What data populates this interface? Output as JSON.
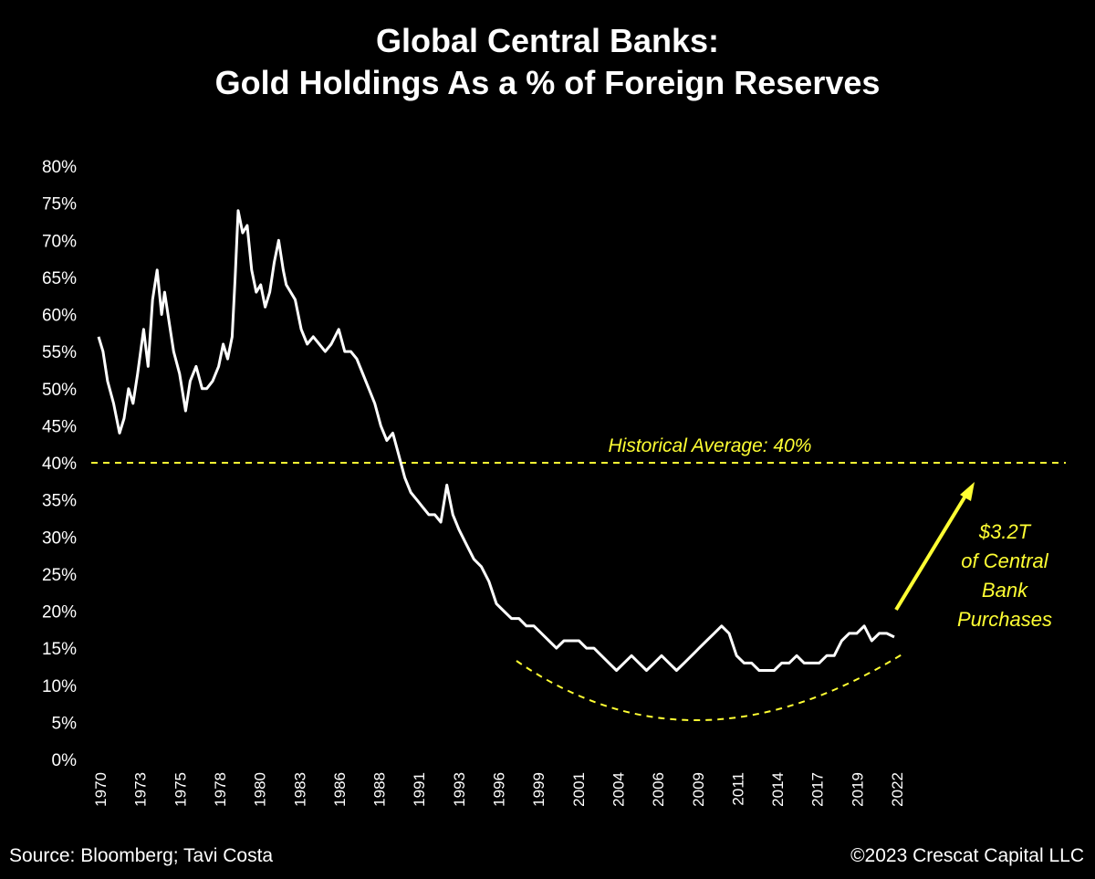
{
  "title": {
    "line1": "Global Central Banks:",
    "line2": "Gold Holdings As a % of Foreign Reserves"
  },
  "footer": {
    "source": "Source: Bloomberg; Tavi Costa",
    "copyright": "©2023 Crescat Capital LLC"
  },
  "colors": {
    "background": "#000000",
    "series": "#ffffff",
    "annotation": "#ffff33"
  },
  "chart_data": {
    "type": "line",
    "title": "Global Central Banks: Gold Holdings As a % of Foreign Reserves",
    "xlabel": "",
    "ylabel": "",
    "ylim": [
      0,
      80
    ],
    "xlim": [
      1970,
      2023
    ],
    "yticks": [
      "0%",
      "5%",
      "10%",
      "15%",
      "20%",
      "25%",
      "30%",
      "35%",
      "40%",
      "45%",
      "50%",
      "55%",
      "60%",
      "65%",
      "70%",
      "75%",
      "80%"
    ],
    "xticks": [
      "1970",
      "1973",
      "1975",
      "1978",
      "1980",
      "1983",
      "1986",
      "1988",
      "1991",
      "1993",
      "1996",
      "1999",
      "2001",
      "2004",
      "2006",
      "2009",
      "2011",
      "2014",
      "2017",
      "2019",
      "2022"
    ],
    "grid": false,
    "legend": "none",
    "series": [
      {
        "x": [
          1970,
          1970.3,
          1970.6,
          1971,
          1971.4,
          1971.7,
          1972,
          1972.3,
          1972.6,
          1973,
          1973.3,
          1973.6,
          1973.9,
          1974.2,
          1974.4,
          1974.7,
          1975,
          1975.4,
          1975.8,
          1976.1,
          1976.5,
          1976.9,
          1977.2,
          1977.6,
          1978,
          1978.3,
          1978.6,
          1978.9,
          1979.1,
          1979.3,
          1979.6,
          1979.9,
          1980.2,
          1980.5,
          1980.8,
          1981.1,
          1981.4,
          1981.7,
          1982,
          1982.3,
          1982.5,
          1982.8,
          1983.1,
          1983.5,
          1983.9,
          1984.3,
          1984.7,
          1985.1,
          1985.5,
          1986,
          1986.4,
          1986.8,
          1987.2,
          1987.6,
          1988,
          1988.4,
          1988.8,
          1989.2,
          1989.6,
          1990,
          1990.4,
          1990.8,
          1991.2,
          1991.6,
          1992,
          1992.4,
          1992.8,
          1993.2,
          1993.6,
          1994,
          1994.5,
          1995,
          1995.5,
          1996,
          1996.5,
          1997,
          1997.5,
          1998,
          1998.5,
          1999,
          1999.5,
          2000,
          2000.5,
          2001,
          2001.5,
          2002,
          2002.5,
          2003,
          2003.5,
          2004,
          2004.5,
          2005,
          2005.5,
          2006,
          2006.5,
          2007,
          2007.5,
          2008,
          2008.5,
          2009,
          2009.5,
          2010,
          2010.5,
          2011,
          2011.5,
          2012,
          2012.5,
          2013,
          2013.5,
          2014,
          2014.5,
          2015,
          2015.5,
          2016,
          2016.5,
          2017,
          2017.5,
          2018,
          2018.5,
          2019,
          2019.5,
          2020,
          2020.5,
          2021,
          2021.5,
          2022,
          2022.5,
          2023
        ],
        "y": [
          57,
          55,
          51,
          48,
          44,
          46,
          50,
          48,
          52,
          58,
          53,
          62,
          66,
          60,
          63,
          59,
          55,
          52,
          47,
          51,
          53,
          50,
          50,
          51,
          53,
          56,
          54,
          57,
          65,
          74,
          71,
          72,
          66,
          63,
          64,
          61,
          63,
          67,
          70,
          66,
          64,
          63,
          62,
          58,
          56,
          57,
          56,
          55,
          56,
          58,
          55,
          55,
          54,
          52,
          50,
          48,
          45,
          43,
          44,
          41,
          38,
          36,
          35,
          34,
          33,
          33,
          32,
          37,
          33,
          31,
          29,
          27,
          26,
          24,
          21,
          20,
          19,
          19,
          18,
          18,
          17,
          16,
          15,
          16,
          16,
          16,
          15,
          15,
          14,
          13,
          12,
          13,
          14,
          13,
          12,
          13,
          14,
          13,
          12,
          13,
          14,
          15,
          16,
          17,
          18,
          17,
          14,
          13,
          13,
          12,
          12,
          12,
          13,
          13,
          14,
          13,
          13,
          13,
          14,
          14,
          16,
          17,
          17,
          18,
          16,
          17,
          17,
          16.5
        ]
      }
    ],
    "annotations": {
      "average_label": "Historical Average: 40%",
      "average_value": 40,
      "purchases_lines": [
        "$3.2T",
        "of Central",
        "Bank",
        "Purchases"
      ]
    }
  }
}
